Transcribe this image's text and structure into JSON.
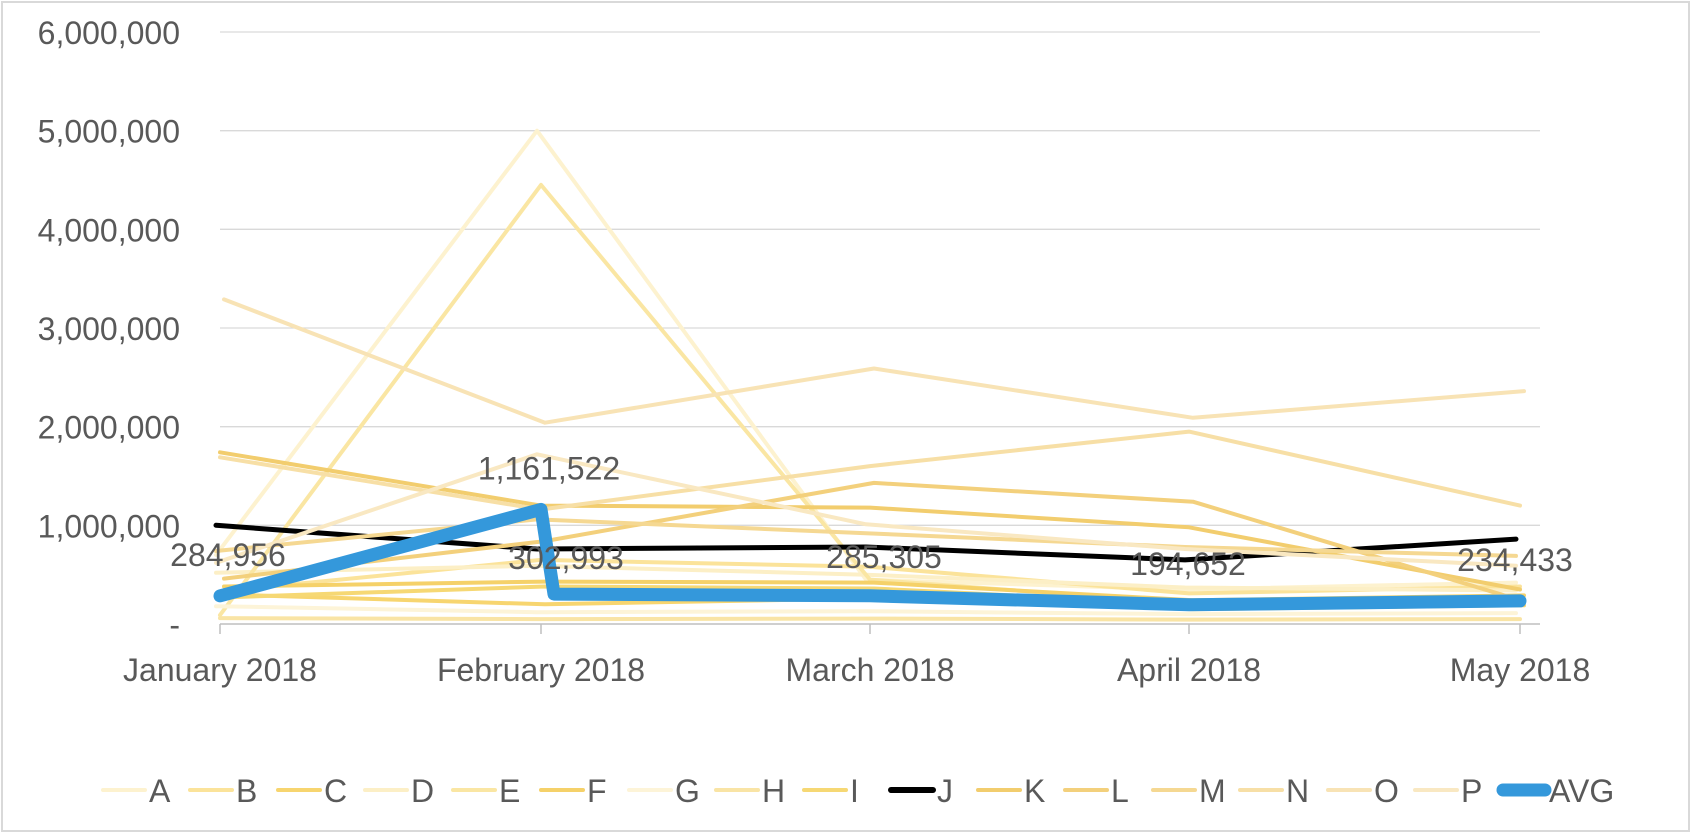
{
  "chart_data": {
    "type": "line",
    "categories": [
      "January 2018",
      "February 2018",
      "March 2018",
      "April 2018",
      "May 2018"
    ],
    "y_ticks": [
      {
        "value": 0,
        "label": "-"
      },
      {
        "value": 1000000,
        "label": "1,000,000"
      },
      {
        "value": 2000000,
        "label": "2,000,000"
      },
      {
        "value": 3000000,
        "label": "3,000,000"
      },
      {
        "value": 4000000,
        "label": "4,000,000"
      },
      {
        "value": 5000000,
        "label": "5,000,000"
      },
      {
        "value": 6000000,
        "label": "6,000,000"
      }
    ],
    "ylim": [
      0,
      6000000
    ],
    "grid": true,
    "legend_position": "bottom",
    "series": [
      {
        "name": "A",
        "color": "#fdf2cf",
        "values": [
          700000,
          5000000,
          450000,
          350000,
          420000
        ]
      },
      {
        "name": "B",
        "color": "#fbe39a",
        "values": [
          330000,
          650000,
          580000,
          310000,
          380000
        ]
      },
      {
        "name": "C",
        "color": "#f7d56f",
        "values": [
          300000,
          200000,
          260000,
          150000,
          190000
        ]
      },
      {
        "name": "D",
        "color": "#fcefc6",
        "values": [
          520000,
          590000,
          500000,
          370000,
          340000
        ]
      },
      {
        "name": "E",
        "color": "#fae6a3",
        "values": [
          90000,
          4450000,
          450000,
          210000,
          220000
        ]
      },
      {
        "name": "F",
        "color": "#f5d169",
        "values": [
          380000,
          430000,
          420000,
          240000,
          290000
        ]
      },
      {
        "name": "G",
        "color": "#fdf4d8",
        "values": [
          180000,
          120000,
          130000,
          100000,
          110000
        ]
      },
      {
        "name": "H",
        "color": "#f9e4a5",
        "values": [
          60000,
          50000,
          55000,
          45000,
          50000
        ]
      },
      {
        "name": "I",
        "color": "#f6d874",
        "values": [
          270000,
          380000,
          360000,
          200000,
          230000
        ]
      },
      {
        "name": "J",
        "color": "#000000",
        "values": [
          1000000,
          760000,
          780000,
          650000,
          860000
        ]
      },
      {
        "name": "K",
        "color": "#f2cd6e",
        "values": [
          1740000,
          1200000,
          1180000,
          980000,
          350000
        ]
      },
      {
        "name": "L",
        "color": "#f3d07c",
        "values": [
          460000,
          840000,
          1430000,
          1240000,
          230000
        ]
      },
      {
        "name": "M",
        "color": "#f5d892",
        "values": [
          740000,
          1060000,
          920000,
          780000,
          690000
        ]
      },
      {
        "name": "N",
        "color": "#f7dfa6",
        "values": [
          1690000,
          1160000,
          1600000,
          1950000,
          1200000
        ]
      },
      {
        "name": "O",
        "color": "#f8e3b5",
        "values": [
          3290000,
          2040000,
          2590000,
          2090000,
          2360000
        ]
      },
      {
        "name": "P",
        "color": "#f9e8c2",
        "values": [
          620000,
          1720000,
          1010000,
          760000,
          590000
        ]
      },
      {
        "name": "AVG",
        "color": "#3498db",
        "values": [
          284956,
          1161522,
          285305,
          194652,
          234433
        ]
      }
    ],
    "avg_points": [
      {
        "category": 0,
        "offset": 0,
        "value": 284956,
        "label": "284,956"
      },
      {
        "category": 1,
        "offset": 0,
        "value": 1161522,
        "label": "1,161,522"
      },
      {
        "category": 1,
        "offset": 1,
        "value": 302993,
        "label": "302,993"
      },
      {
        "category": 2,
        "offset": 0,
        "value": 285305,
        "label": "285,305"
      },
      {
        "category": 3,
        "offset": 0,
        "value": 194652,
        "label": "194,652"
      },
      {
        "category": 4,
        "offset": 0,
        "value": 234433,
        "label": "234,433"
      }
    ]
  }
}
